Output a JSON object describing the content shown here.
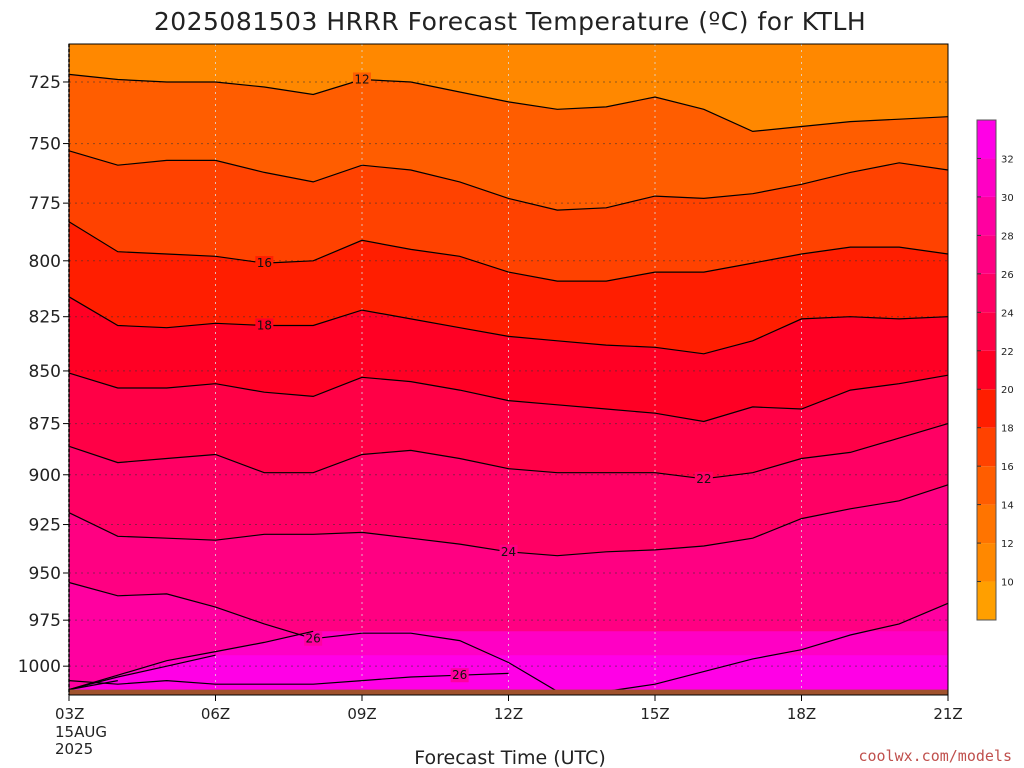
{
  "title": "2025081503 HRRR Forecast Temperature (ºC) for KTLH",
  "credit": "coolwx.com/models",
  "chart_data": {
    "type": "heatmap",
    "title": "2025081503 HRRR Forecast Temperature (ºC) for KTLH",
    "xlabel": "Forecast Time (UTC)",
    "ylabel": "",
    "x_ticks": [
      "03Z",
      "06Z",
      "09Z",
      "12Z",
      "15Z",
      "18Z",
      "21Z"
    ],
    "x_first_tick_extra": [
      "15AUG",
      "2025"
    ],
    "x_hours": [
      3,
      6,
      9,
      12,
      15,
      18,
      21
    ],
    "xlim": [
      3,
      21
    ],
    "y_ticks": [
      725,
      750,
      775,
      800,
      825,
      850,
      875,
      900,
      925,
      950,
      975,
      1000
    ],
    "ylim": [
      1016,
      710
    ],
    "y_scale": "log-pressure",
    "surface_pressure_hPa": 1013,
    "grid": true,
    "colorbar": {
      "ticks": [
        10,
        12,
        14,
        16,
        18,
        20,
        22,
        24,
        26,
        28,
        30,
        32
      ],
      "range": [
        8,
        34
      ],
      "colors": [
        "#ff9f00",
        "#ff8800",
        "#ff7400",
        "#ff5d00",
        "#ff4200",
        "#ff1e00",
        "#ff0024",
        "#ff0046",
        "#ff0064",
        "#ff0082",
        "#ff00a0",
        "#ff00c4",
        "#ff00e6"
      ],
      "placement": "right"
    },
    "contour_hours": [
      3,
      4,
      5,
      6,
      7,
      8,
      9,
      10,
      11,
      12,
      13,
      14,
      15,
      16,
      17,
      18,
      19,
      20,
      21
    ],
    "contours": [
      {
        "level": 12,
        "label": "12",
        "label_hour": 9,
        "pressure": [
          722,
          724,
          725,
          725,
          727,
          730,
          724,
          725,
          729,
          733,
          736,
          735,
          731,
          736,
          745,
          743,
          741,
          740,
          739
        ]
      },
      {
        "level": 14,
        "label": "",
        "label_hour": null,
        "pressure": [
          753,
          759,
          757,
          757,
          762,
          766,
          759,
          761,
          766,
          773,
          778,
          777,
          772,
          773,
          771,
          767,
          762,
          758,
          761
        ]
      },
      {
        "level": 16,
        "label": "16",
        "label_hour": 7,
        "pressure": [
          783,
          796,
          797,
          798,
          801,
          800,
          791,
          795,
          798,
          805,
          809,
          809,
          805,
          805,
          801,
          797,
          794,
          794,
          797
        ]
      },
      {
        "level": 18,
        "label": "18",
        "label_hour": 7,
        "pressure": [
          816,
          829,
          830,
          828,
          829,
          829,
          822,
          826,
          830,
          834,
          836,
          838,
          839,
          842,
          836,
          826,
          825,
          826,
          825
        ]
      },
      {
        "level": 20,
        "label": "",
        "label_hour": null,
        "pressure": [
          851,
          858,
          858,
          856,
          860,
          862,
          853,
          855,
          859,
          864,
          866,
          868,
          870,
          874,
          867,
          868,
          859,
          856,
          852
        ]
      },
      {
        "level": 22,
        "label": "22",
        "label_hour": 16,
        "pressure": [
          886,
          894,
          892,
          890,
          899,
          899,
          890,
          888,
          892,
          897,
          899,
          899,
          899,
          902,
          899,
          892,
          889,
          882,
          875
        ]
      },
      {
        "level": 24,
        "label": "24",
        "label_hour": 12,
        "pressure": [
          919,
          931,
          932,
          933,
          930,
          930,
          929,
          932,
          935,
          939,
          941,
          939,
          938,
          936,
          932,
          922,
          917,
          913,
          905
        ]
      },
      {
        "level": 26,
        "label": "26",
        "label_hour": 8,
        "pressure": [
          955,
          962,
          961,
          968,
          977,
          985,
          982,
          982,
          986,
          998,
          1014,
          1014,
          1010,
          1003,
          996,
          991,
          983,
          977,
          966
        ]
      },
      {
        "level": 26,
        "label": "26",
        "label_hour": 11,
        "pressure": [
          1008,
          1010,
          1008,
          1010,
          1010,
          1010,
          1008,
          1006,
          1005,
          1004
        ]
      },
      {
        "level": 28,
        "label": "",
        "label_hour": null,
        "pressure": [
          1013,
          1005,
          997,
          992,
          987,
          981
        ]
      },
      {
        "level": 30,
        "label": "",
        "label_hour": null,
        "pressure": [
          1013,
          1006,
          1000,
          994
        ]
      },
      {
        "level": 32,
        "label": "",
        "label_hour": null,
        "pressure": [
          1013,
          1008
        ]
      }
    ]
  }
}
